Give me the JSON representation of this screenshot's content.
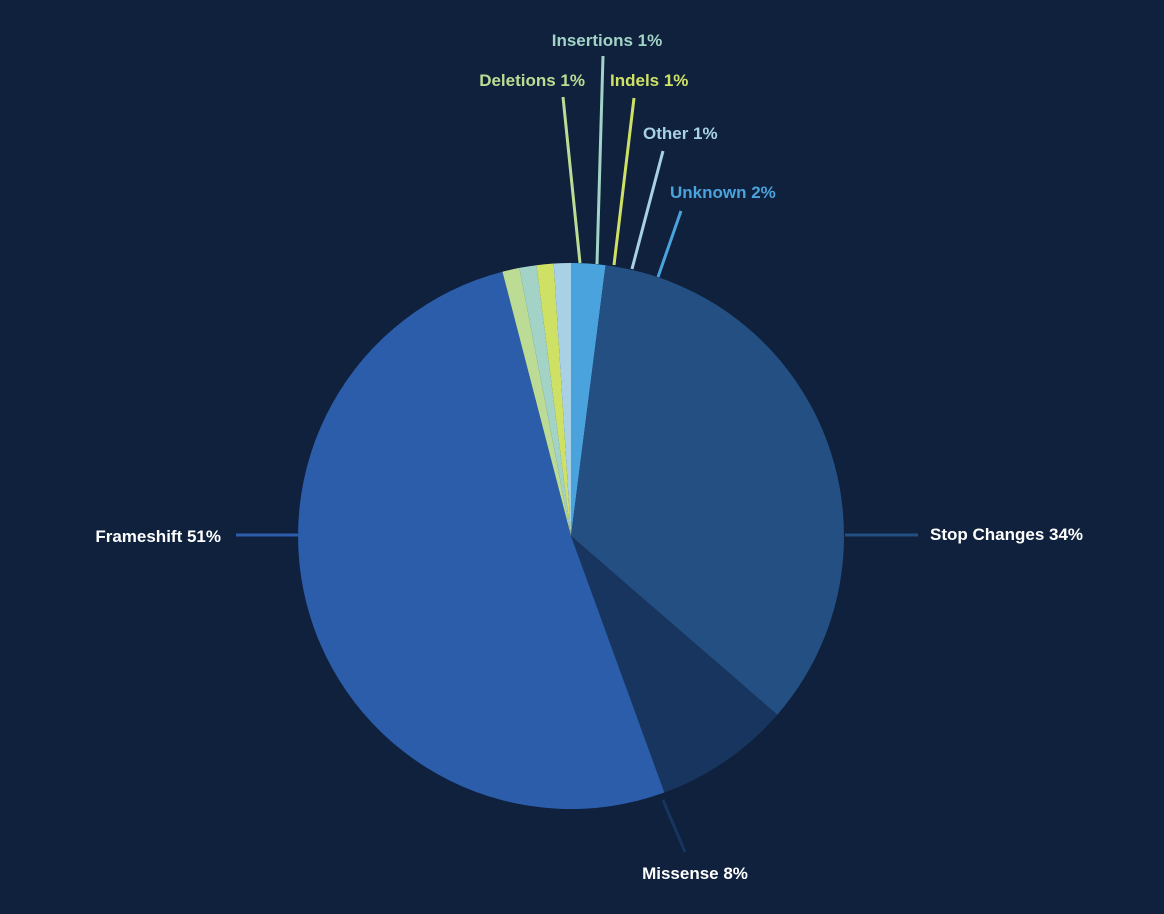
{
  "chart_data": {
    "type": "pie",
    "title": "",
    "background_color": "#0f213c",
    "start": "top",
    "direction": "clockwise",
    "slices": [
      {
        "label": "Unknown 2%",
        "name": "Unknown",
        "value": 2,
        "color": "#4aa3dc",
        "label_color": "#4aa3dc"
      },
      {
        "label": "Stop Changes 34%",
        "name": "Stop Changes",
        "value": 34,
        "color": "#244f82",
        "label_color": "#ffffff"
      },
      {
        "label": "Missense 8%",
        "name": "Missense",
        "value": 8,
        "color": "#17355f",
        "label_color": "#ffffff"
      },
      {
        "label": "Frameshift 51%",
        "name": "Frameshift",
        "value": 51,
        "color": "#2b5dab",
        "label_color": "#ffffff"
      },
      {
        "label": "Deletions 1%",
        "name": "Deletions",
        "value": 1,
        "color": "#bcdb94",
        "label_color": "#bcdb94"
      },
      {
        "label": "Insertions 1%",
        "name": "Insertions",
        "value": 1,
        "color": "#a3d3c6",
        "label_color": "#a3d3c6"
      },
      {
        "label": "Indels 1%",
        "name": "Indels",
        "value": 1,
        "color": "#cfe165",
        "label_color": "#cfe165"
      },
      {
        "label": "Other 1%",
        "name": "Other",
        "value": 1,
        "color": "#a8d1e6",
        "label_color": "#a8d1e6"
      }
    ]
  }
}
